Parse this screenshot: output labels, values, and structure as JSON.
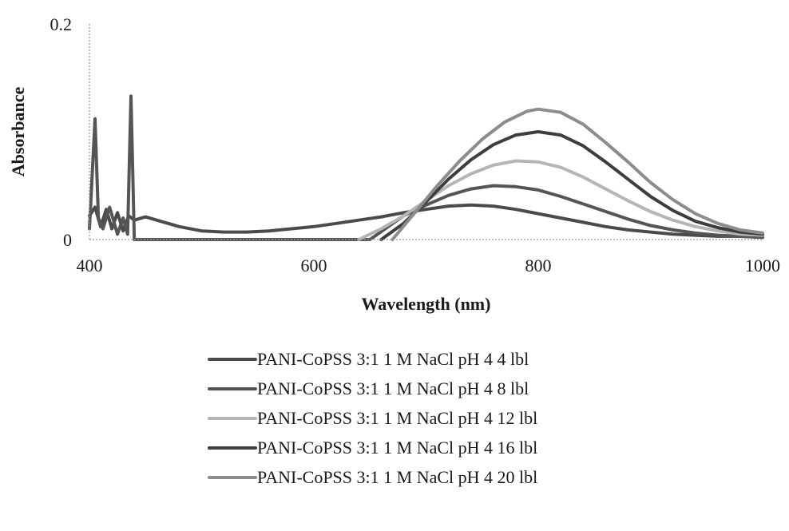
{
  "chart_data": {
    "type": "line",
    "title": "",
    "xlabel": "Wavelength (nm)",
    "ylabel": "Absorbance",
    "xlim": [
      400,
      1000
    ],
    "ylim": [
      0,
      0.2
    ],
    "x_ticks": [
      "400",
      "600",
      "800",
      "1000"
    ],
    "y_ticks": [
      "0",
      "0.2"
    ],
    "grid": false,
    "legend_position": "bottom",
    "series": [
      {
        "name": "PANI-CoPSS 3:1 1 M NaCl pH 4 4 lbl",
        "color": "#4a4a4a",
        "x": [
          400,
          405,
          410,
          415,
          420,
          425,
          430,
          435,
          440,
          450,
          460,
          480,
          500,
          520,
          540,
          560,
          580,
          600,
          620,
          640,
          660,
          680,
          700,
          720,
          740,
          760,
          780,
          800,
          820,
          840,
          860,
          880,
          900,
          920,
          940,
          960,
          980,
          1000
        ],
        "y": [
          0.022,
          0.03,
          0.012,
          0.028,
          0.01,
          0.025,
          0.008,
          0.022,
          0.018,
          0.021,
          0.018,
          0.012,
          0.008,
          0.007,
          0.007,
          0.008,
          0.01,
          0.012,
          0.015,
          0.018,
          0.021,
          0.025,
          0.028,
          0.031,
          0.032,
          0.031,
          0.028,
          0.024,
          0.02,
          0.016,
          0.012,
          0.009,
          0.007,
          0.005,
          0.004,
          0.003,
          0.003,
          0.002
        ]
      },
      {
        "name": "PANI-CoPSS 3:1 1 M NaCl pH 4 8 lbl",
        "color": "#555555",
        "x": [
          400,
          405,
          408,
          412,
          418,
          425,
          430,
          434,
          437,
          440,
          650,
          680,
          700,
          720,
          740,
          760,
          780,
          800,
          820,
          840,
          860,
          880,
          900,
          920,
          940,
          960,
          1000
        ],
        "y": [
          0.01,
          0.112,
          0.02,
          0.01,
          0.03,
          0.005,
          0.02,
          0.005,
          0.133,
          0.0,
          0.0,
          0.022,
          0.032,
          0.041,
          0.047,
          0.05,
          0.049,
          0.046,
          0.04,
          0.033,
          0.026,
          0.019,
          0.013,
          0.009,
          0.006,
          0.004,
          0.002
        ]
      },
      {
        "name": "PANI-CoPSS 3:1 1 M NaCl pH 4 12 lbl",
        "color": "#b5b5b5",
        "x": [
          640,
          660,
          680,
          700,
          720,
          740,
          760,
          780,
          800,
          820,
          840,
          860,
          880,
          900,
          920,
          940,
          960,
          980,
          1000
        ],
        "y": [
          0.0,
          0.01,
          0.022,
          0.036,
          0.05,
          0.061,
          0.069,
          0.073,
          0.072,
          0.067,
          0.058,
          0.047,
          0.036,
          0.026,
          0.018,
          0.012,
          0.008,
          0.005,
          0.004
        ]
      },
      {
        "name": "PANI-CoPSS 3:1 1 M NaCl pH 4 16 lbl",
        "color": "#3d3d3d",
        "x": [
          660,
          680,
          700,
          720,
          740,
          760,
          780,
          800,
          820,
          840,
          860,
          880,
          900,
          920,
          940,
          960,
          980,
          1000
        ],
        "y": [
          0.0,
          0.015,
          0.035,
          0.056,
          0.074,
          0.088,
          0.097,
          0.1,
          0.097,
          0.087,
          0.072,
          0.056,
          0.04,
          0.027,
          0.017,
          0.011,
          0.007,
          0.005
        ]
      },
      {
        "name": "PANI-CoPSS 3:1 1 M NaCl pH 4 20 lbl",
        "color": "#8c8c8c",
        "x": [
          670,
          690,
          710,
          730,
          750,
          770,
          790,
          800,
          820,
          840,
          860,
          880,
          900,
          920,
          940,
          960,
          980,
          1000
        ],
        "y": [
          0.0,
          0.025,
          0.05,
          0.073,
          0.093,
          0.109,
          0.119,
          0.121,
          0.118,
          0.107,
          0.09,
          0.072,
          0.053,
          0.037,
          0.024,
          0.015,
          0.009,
          0.006
        ]
      }
    ]
  }
}
